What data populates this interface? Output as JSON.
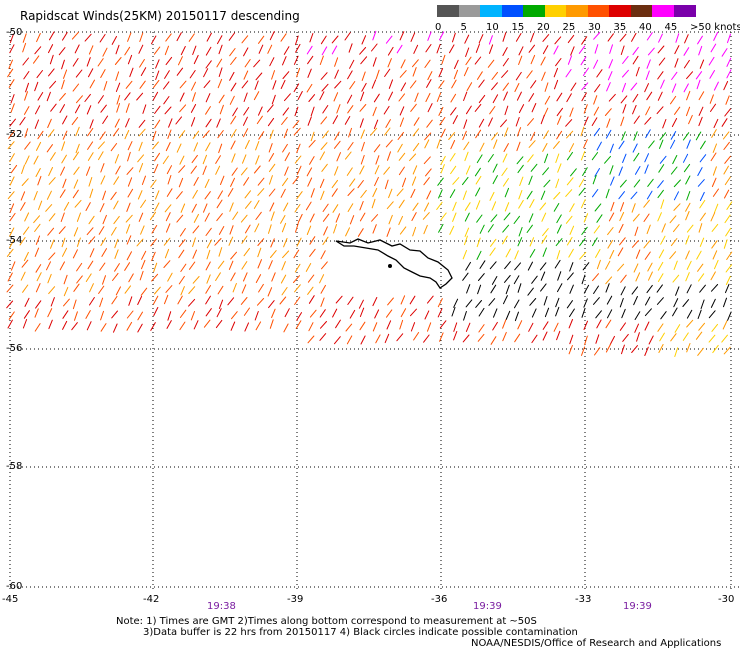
{
  "title": "Rapidscat Winds(25KM) 20150117 descending",
  "legend": {
    "labels": [
      "0",
      "5",
      "10",
      "15",
      "20",
      "25",
      "30",
      "35",
      "40",
      "45",
      ">50 knots"
    ],
    "colors": [
      "#555555",
      "#9a9a9a",
      "#00b4ff",
      "#0050ff",
      "#00aa00",
      "#ffd000",
      "#ff9a00",
      "#ff5000",
      "#dd0000",
      "#6b2e10",
      "#ff00ff",
      "#7a00aa"
    ]
  },
  "lat_labels": [
    "-50",
    "-52",
    "-54",
    "-56",
    "-58",
    "-60"
  ],
  "lon_labels": [
    "-45",
    "-42",
    "-39",
    "-36",
    "-33",
    "-30"
  ],
  "time_labels": [
    "19:38",
    "19:39",
    "19:39"
  ],
  "notes": {
    "line1": "Note: 1) Times are GMT 2)Times along bottom correspond to measurement at ~50S",
    "line2": "3)Data buffer is 22 hrs from 20150117 4) Black circles indicate possible contamination",
    "credit": "NOAA/NESDIS/Office of Research and Applications"
  }
}
